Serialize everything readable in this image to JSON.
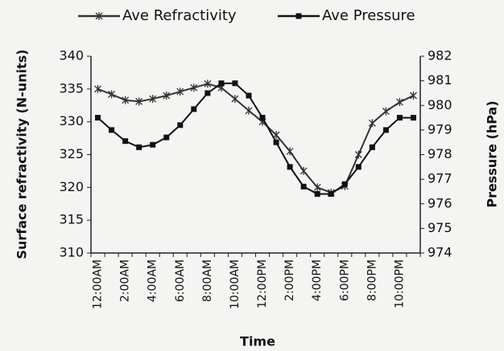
{
  "chart_data": {
    "type": "line",
    "xlabel": "Time",
    "ylabel": "Surface refractivity (N-units)",
    "y2label": "Pressure (hPa)",
    "categories": [
      "12:00AM",
      null,
      "2:00AM",
      null,
      "4:00AM",
      null,
      "6:00AM",
      null,
      "8:00AM",
      null,
      "10:00AM",
      null,
      "12:00PM",
      null,
      "2:00PM",
      null,
      "4:00PM",
      null,
      "6:00PM",
      null,
      "8:00PM",
      null,
      "10:00PM",
      null
    ],
    "series": [
      {
        "name": "Ave Refractivity",
        "color": "#333333",
        "marker": "x",
        "axis": "y",
        "values": [
          335,
          334.2,
          333.3,
          333.1,
          333.5,
          334,
          334.6,
          335.2,
          335.8,
          335.2,
          333.5,
          331.7,
          330,
          328,
          325.5,
          322.5,
          320,
          319.2,
          320.2,
          325,
          329.8,
          331.6,
          333,
          334
        ]
      },
      {
        "name": "Ave Pressure",
        "color": "#111111",
        "marker": "square",
        "axis": "y2",
        "values": [
          979.5,
          979.0,
          978.55,
          978.3,
          978.4,
          978.7,
          979.2,
          979.85,
          980.5,
          980.9,
          980.9,
          980.4,
          979.5,
          978.5,
          977.5,
          976.7,
          976.4,
          976.4,
          976.8,
          977.5,
          978.3,
          979.0,
          979.5,
          979.5
        ]
      }
    ],
    "ylim": [
      310,
      340
    ],
    "yticks": [
      310,
      315,
      320,
      325,
      330,
      335,
      340
    ],
    "y2lim": [
      974,
      982
    ],
    "y2ticks": [
      974,
      975,
      976,
      977,
      978,
      979,
      980,
      981,
      982
    ],
    "grid": false,
    "legend": "top"
  }
}
